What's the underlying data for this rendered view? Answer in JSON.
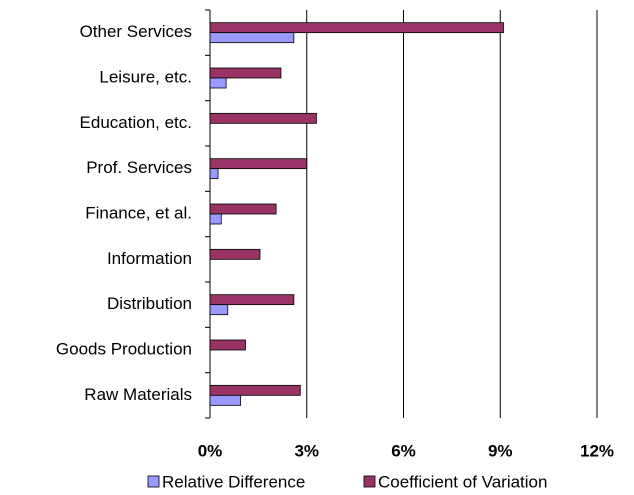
{
  "chart_data": {
    "type": "hbar",
    "categories": [
      "Other Services",
      "Leisure, etc.",
      "Education, etc.",
      "Prof. Services",
      "Finance, et al.",
      "Information",
      "Distribution",
      "Goods Production",
      "Raw Materials"
    ],
    "series": [
      {
        "name": "Relative Difference",
        "color": "#9999ff",
        "values": [
          2.6,
          0.5,
          0,
          0.25,
          0.35,
          0,
          0.55,
          0,
          0.95
        ]
      },
      {
        "name": "Coefficient of Variation",
        "color": "#993366",
        "values": [
          9.1,
          2.2,
          3.3,
          3.0,
          2.05,
          1.55,
          2.6,
          1.1,
          2.8
        ]
      }
    ],
    "xlim": [
      0,
      12
    ],
    "xticks": [
      {
        "value": 0,
        "label": "0%"
      },
      {
        "value": 3,
        "label": "3%"
      },
      {
        "value": 6,
        "label": "6%"
      },
      {
        "value": 9,
        "label": "9%"
      },
      {
        "value": 12,
        "label": "12%"
      }
    ],
    "grid": true
  }
}
